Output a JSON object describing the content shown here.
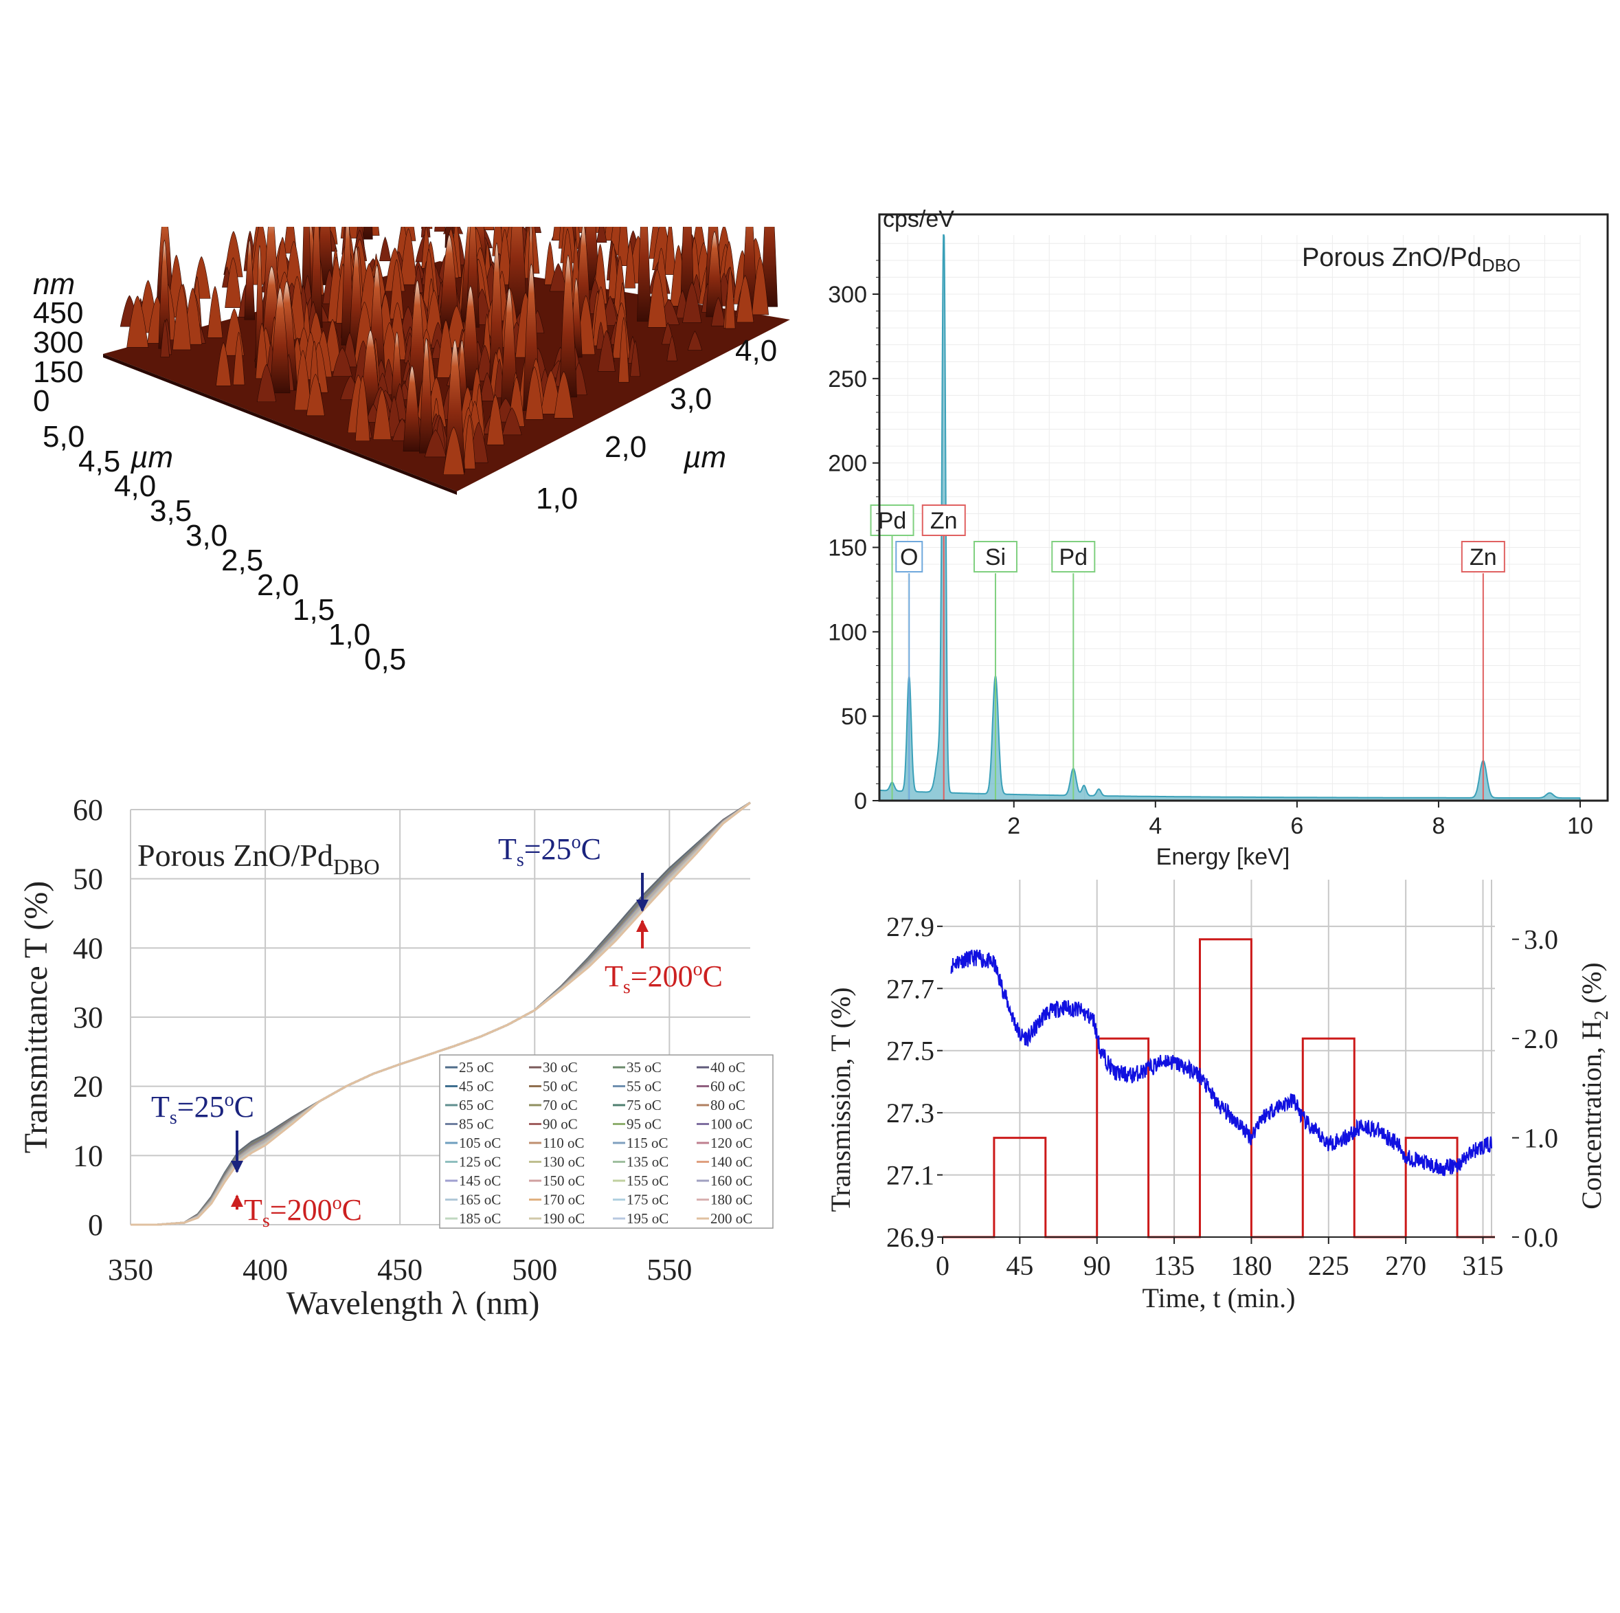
{
  "chart_data": [
    {
      "type": "surface",
      "id": "afm",
      "z_unit": "nm",
      "z_ticks": [
        "450",
        "300",
        "150",
        "0"
      ],
      "x_unit": "µm",
      "x_ticks": [
        "5,0",
        "4,5",
        "4,0",
        "3,5",
        "3,0",
        "2,5",
        "2,0",
        "1,5",
        "1,0",
        "0,5"
      ],
      "y_unit": "µm",
      "y_ticks": [
        "1,0",
        "2,0",
        "3,0",
        "4,0"
      ],
      "colors": {
        "low": "#5a1406",
        "mid": "#b0401c",
        "high": "#f2dccb"
      }
    },
    {
      "type": "line",
      "id": "edx",
      "title": "Porous ZnO/Pd",
      "title_sub": "DBO",
      "ylabel": "cps/eV",
      "xlabel": "Energy [keV]",
      "xlim": [
        0.1,
        10
      ],
      "ylim": [
        0,
        335
      ],
      "xticks": [
        2,
        4,
        6,
        8,
        10
      ],
      "yticks": [
        0,
        50,
        100,
        150,
        200,
        250,
        300
      ],
      "grid": true,
      "peaks": [
        {
          "x": 0.28,
          "y": 5,
          "w": 0.03
        },
        {
          "x": 0.52,
          "y": 68,
          "w": 0.03
        },
        {
          "x": 0.95,
          "y": 25,
          "w": 0.05
        },
        {
          "x": 1.01,
          "y": 325,
          "w": 0.025
        },
        {
          "x": 1.74,
          "y": 70,
          "w": 0.04
        },
        {
          "x": 2.84,
          "y": 16,
          "w": 0.04
        },
        {
          "x": 2.99,
          "y": 6,
          "w": 0.03
        },
        {
          "x": 3.2,
          "y": 4,
          "w": 0.03
        },
        {
          "x": 8.63,
          "y": 22,
          "w": 0.05
        },
        {
          "x": 9.57,
          "y": 3,
          "w": 0.05
        }
      ],
      "element_lines": [
        {
          "label": "Pd",
          "x": 0.28,
          "y": 170,
          "color": "#7fd07f",
          "label_row": "high"
        },
        {
          "label": "Zn",
          "x": 1.01,
          "y": 170,
          "color": "#e06060",
          "label_row": "high"
        },
        {
          "label": "O",
          "x": 0.52,
          "y": 142,
          "color": "#6fa8dc",
          "label_row": "low"
        },
        {
          "label": "Si",
          "x": 1.74,
          "y": 142,
          "color": "#7fd07f",
          "label_row": "low"
        },
        {
          "label": "Pd",
          "x": 2.84,
          "y": 142,
          "color": "#7fd07f",
          "label_row": "low"
        },
        {
          "label": "Zn",
          "x": 8.63,
          "y": 142,
          "color": "#e06060",
          "label_row": "low"
        }
      ],
      "spectrum_color": "#3aa0b8"
    },
    {
      "type": "line",
      "id": "transmittance",
      "title": "Porous ZnO/Pd",
      "title_sub": "DBO",
      "xlabel": "Wavelength λ (nm)",
      "ylabel": "Transmittance T (%)",
      "xlim": [
        350,
        580
      ],
      "ylim": [
        0,
        60
      ],
      "xticks": [
        350,
        400,
        450,
        500,
        550
      ],
      "yticks": [
        0,
        10,
        20,
        30,
        40,
        50,
        60
      ],
      "grid": true,
      "curve": {
        "x": [
          350,
          360,
          370,
          375,
          380,
          385,
          390,
          395,
          400,
          410,
          420,
          430,
          440,
          450,
          460,
          470,
          480,
          490,
          500,
          510,
          520,
          530,
          540,
          550,
          560,
          570,
          580
        ],
        "y": [
          0,
          0,
          0.3,
          1.5,
          4,
          7.5,
          10.5,
          12,
          13,
          15.5,
          17.8,
          20,
          21.8,
          23.2,
          24.5,
          25.8,
          27.2,
          28.9,
          31,
          34.5,
          38.6,
          43,
          47.5,
          51.5,
          55,
          58.5,
          61
        ]
      },
      "series_names": [
        "25 oC",
        "30 oC",
        "35 oC",
        "40 oC",
        "45 oC",
        "50 oC",
        "55 oC",
        "60 oC",
        "65 oC",
        "70 oC",
        "75 oC",
        "80 oC",
        "85 oC",
        "90 oC",
        "95 oC",
        "100 oC",
        "105 oC",
        "110 oC",
        "115 oC",
        "120 oC",
        "125 oC",
        "130 oC",
        "135 oC",
        "140 oC",
        "145 oC",
        "150 oC",
        "155 oC",
        "160 oC",
        "165 oC",
        "170 oC",
        "175 oC",
        "180 oC",
        "185 oC",
        "190 oC",
        "195 oC",
        "200 oC"
      ],
      "series_colors": [
        "#4f6d8a",
        "#7a5a5a",
        "#6b8a6b",
        "#5f5a7a",
        "#3f6f8f",
        "#8f6f4f",
        "#6f8faf",
        "#8f5f7f",
        "#5f8f8f",
        "#8f8f5f",
        "#4f7f6f",
        "#b07f5f",
        "#6f7fa0",
        "#a05f5f",
        "#8faf6f",
        "#7f6fa0",
        "#6f9fbf",
        "#bf8f6f",
        "#7fa0bf",
        "#bf7f8f",
        "#8fbfbf",
        "#bfbf8f",
        "#9fbf9f",
        "#dfa07f",
        "#a0a0d0",
        "#d0a0a0",
        "#c0d0a0",
        "#a0a0c0",
        "#b0c8d8",
        "#e0b080",
        "#b0d0e0",
        "#d8b0b0",
        "#c0d8c0",
        "#d0c8a8",
        "#b8c8e0",
        "#e0c0a0"
      ],
      "legend_position": "bottom-right",
      "annotations": [
        {
          "text": "T",
          "sub": "s",
          "rest": "=25",
          "sup": "o",
          "tail": "C",
          "color": "#1a237e",
          "arrow": "down",
          "ax": 540,
          "ay": 49
        },
        {
          "text": "T",
          "sub": "s",
          "rest": "=200",
          "sup": "o",
          "tail": "C",
          "color": "#cc2020",
          "arrow": "up",
          "ax": 540,
          "ay": 46
        },
        {
          "text": "T",
          "sub": "s",
          "rest": "=25",
          "sup": "o",
          "tail": "C",
          "color": "#1a237e",
          "arrow": "down",
          "ax": 390,
          "ay": 10
        },
        {
          "text": "T",
          "sub": "s",
          "rest": "=200",
          "sup": "o",
          "tail": "C",
          "color": "#cc2020",
          "arrow": "up",
          "ax": 390,
          "ay": 0
        }
      ]
    },
    {
      "type": "line",
      "id": "sensing",
      "xlabel": "Time, t (min.)",
      "ylabel": "Transmission, T (%)",
      "y2label": "Concentration,  H",
      "y2label_sub": "2",
      "y2label_tail": " (%)",
      "xlim": [
        0,
        322
      ],
      "ylim": [
        26.9,
        28.05
      ],
      "y2lim": [
        0,
        3.6
      ],
      "xticks": [
        0,
        45,
        90,
        135,
        180,
        225,
        270,
        315
      ],
      "yticks": [
        26.9,
        27.1,
        27.3,
        27.5,
        27.7,
        27.9
      ],
      "ytick_labels": [
        "26.9",
        "27.1",
        "27.3",
        "27.5",
        "27.7",
        "27.9"
      ],
      "y2ticks": [
        0,
        1,
        2,
        3
      ],
      "y2tick_labels": [
        "0.0",
        "1.0",
        "2.0",
        "3.0"
      ],
      "grid": true,
      "transmission": {
        "color": "#1010e0",
        "x": [
          0,
          10,
          20,
          30,
          35,
          40,
          45,
          50,
          55,
          60,
          70,
          80,
          88,
          92,
          100,
          110,
          120,
          130,
          140,
          150,
          160,
          170,
          180,
          185,
          195,
          205,
          210,
          215,
          225,
          235,
          245,
          255,
          265,
          270,
          280,
          290,
          300,
          310,
          320
        ],
        "y": [
          27.76,
          27.79,
          27.8,
          27.78,
          27.7,
          27.62,
          27.55,
          27.54,
          27.58,
          27.62,
          27.64,
          27.63,
          27.6,
          27.5,
          27.43,
          27.42,
          27.44,
          27.47,
          27.45,
          27.42,
          27.33,
          27.28,
          27.22,
          27.28,
          27.32,
          27.34,
          27.28,
          27.25,
          27.2,
          27.22,
          27.26,
          27.24,
          27.2,
          27.16,
          27.14,
          27.12,
          27.13,
          27.18,
          27.2
        ]
      },
      "concentration": {
        "color": "#cc1a1a",
        "x": [
          0,
          30,
          30,
          60,
          60,
          90,
          90,
          120,
          120,
          150,
          150,
          180,
          180,
          210,
          210,
          240,
          240,
          270,
          270,
          300,
          300,
          322
        ],
        "y": [
          0,
          0,
          1,
          1,
          0,
          0,
          2,
          2,
          0,
          0,
          3,
          3,
          0,
          0,
          2,
          2,
          0,
          0,
          1,
          1,
          0,
          0
        ]
      }
    }
  ]
}
